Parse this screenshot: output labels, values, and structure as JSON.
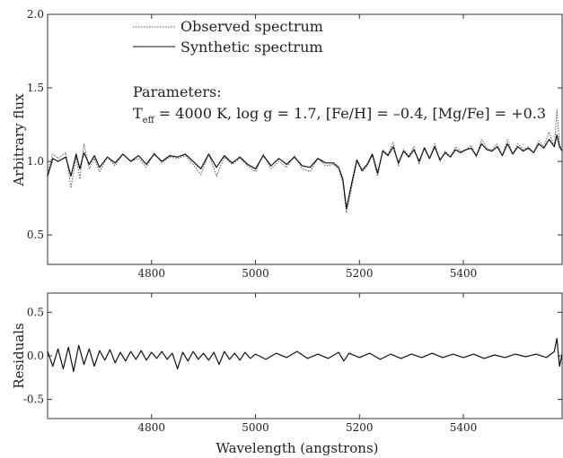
{
  "chart_data": [
    {
      "type": "line",
      "panel": "spectrum",
      "xlabel": "",
      "ylabel": "Arbitrary flux",
      "xlim": [
        4600,
        5590
      ],
      "ylim": [
        0.3,
        2.0
      ],
      "xticks": [
        4800,
        5000,
        5200,
        5400
      ],
      "xtick_labels": [
        "4800",
        "5000",
        "5200",
        "5400"
      ],
      "yticks": [
        0.5,
        1.0,
        1.5,
        2.0
      ],
      "ytick_labels": [
        "0.5",
        "1.0",
        "1.5",
        "2.0"
      ],
      "legend_placement": "top-left",
      "annotation": {
        "title": "Parameters:",
        "teff_symbol": "T",
        "teff_sub": "eff",
        "teff_rest": " = 4000 K, log g = 1.7, [Fe/H] = –0.4, [Mg/Fe] = +0.3"
      },
      "series": [
        {
          "name": "Observed spectrum",
          "style": "dotted",
          "color": "#555555",
          "x": [
            4600,
            4610,
            4620,
            4635,
            4645,
            4655,
            4662,
            4670,
            4680,
            4690,
            4700,
            4715,
            4730,
            4745,
            4760,
            4775,
            4790,
            4805,
            4820,
            4835,
            4850,
            4865,
            4880,
            4895,
            4910,
            4925,
            4940,
            4955,
            4970,
            4985,
            5000,
            5015,
            5030,
            5045,
            5060,
            5075,
            5090,
            5105,
            5120,
            5135,
            5150,
            5160,
            5168,
            5175,
            5185,
            5195,
            5205,
            5215,
            5225,
            5235,
            5245,
            5255,
            5265,
            5275,
            5285,
            5295,
            5305,
            5315,
            5325,
            5335,
            5345,
            5355,
            5365,
            5375,
            5385,
            5395,
            5405,
            5415,
            5425,
            5435,
            5445,
            5455,
            5465,
            5475,
            5485,
            5495,
            5505,
            5515,
            5525,
            5535,
            5545,
            5555,
            5565,
            5575,
            5580,
            5585,
            5590
          ],
          "y": [
            0.92,
            1.05,
            1.02,
            1.06,
            0.82,
            1.03,
            0.88,
            1.12,
            0.95,
            1.02,
            0.93,
            1.03,
            0.97,
            1.05,
            1.0,
            1.02,
            0.96,
            1.06,
            0.99,
            1.03,
            1.02,
            1.04,
            0.98,
            0.91,
            1.05,
            0.9,
            1.03,
            0.98,
            1.02,
            0.97,
            0.93,
            1.05,
            0.95,
            1.0,
            0.96,
            1.04,
            0.95,
            0.93,
            1.02,
            0.97,
            0.98,
            0.95,
            0.86,
            0.65,
            0.82,
            1.0,
            0.93,
            0.97,
            1.04,
            0.9,
            1.08,
            1.05,
            1.13,
            0.97,
            1.08,
            1.04,
            1.1,
            0.98,
            1.1,
            1.02,
            1.12,
            1.0,
            1.07,
            1.03,
            1.1,
            1.07,
            1.08,
            1.11,
            1.03,
            1.15,
            1.09,
            1.08,
            1.12,
            1.04,
            1.15,
            1.05,
            1.12,
            1.08,
            1.1,
            1.06,
            1.14,
            1.1,
            1.2,
            1.1,
            1.35,
            1.12,
            1.08
          ]
        },
        {
          "name": "Synthetic spectrum",
          "style": "solid",
          "color": "#111111",
          "x": [
            4600,
            4610,
            4620,
            4635,
            4645,
            4655,
            4662,
            4670,
            4680,
            4690,
            4700,
            4715,
            4730,
            4745,
            4760,
            4775,
            4790,
            4805,
            4820,
            4835,
            4850,
            4865,
            4880,
            4895,
            4910,
            4925,
            4940,
            4955,
            4970,
            4985,
            5000,
            5015,
            5030,
            5045,
            5060,
            5075,
            5090,
            5105,
            5120,
            5135,
            5150,
            5160,
            5168,
            5175,
            5185,
            5195,
            5205,
            5215,
            5225,
            5235,
            5245,
            5255,
            5265,
            5275,
            5285,
            5295,
            5305,
            5315,
            5325,
            5335,
            5345,
            5355,
            5365,
            5375,
            5385,
            5395,
            5405,
            5415,
            5425,
            5435,
            5445,
            5455,
            5465,
            5475,
            5485,
            5495,
            5505,
            5515,
            5525,
            5535,
            5545,
            5555,
            5565,
            5575,
            5580,
            5585,
            5590
          ],
          "y": [
            0.9,
            1.02,
            1.0,
            1.03,
            0.9,
            1.05,
            0.95,
            1.06,
            0.98,
            1.04,
            0.96,
            1.03,
            0.99,
            1.05,
            1.0,
            1.04,
            0.98,
            1.05,
            1.0,
            1.04,
            1.03,
            1.05,
            1.0,
            0.95,
            1.05,
            0.96,
            1.04,
            0.99,
            1.03,
            0.98,
            0.95,
            1.04,
            0.97,
            1.02,
            0.98,
            1.03,
            0.97,
            0.96,
            1.02,
            0.99,
            0.99,
            0.96,
            0.88,
            0.68,
            0.85,
            1.01,
            0.94,
            0.98,
            1.05,
            0.92,
            1.07,
            1.04,
            1.1,
            0.99,
            1.07,
            1.03,
            1.08,
            1.0,
            1.09,
            1.02,
            1.1,
            1.01,
            1.06,
            1.03,
            1.08,
            1.06,
            1.08,
            1.09,
            1.04,
            1.12,
            1.08,
            1.07,
            1.1,
            1.04,
            1.12,
            1.05,
            1.1,
            1.07,
            1.09,
            1.06,
            1.12,
            1.09,
            1.15,
            1.1,
            1.18,
            1.1,
            1.07
          ]
        }
      ]
    },
    {
      "type": "line",
      "panel": "residuals",
      "xlabel": "Wavelength (angstrons)",
      "ylabel": "Residuals",
      "xlim": [
        4600,
        5590
      ],
      "ylim": [
        -0.72,
        0.72
      ],
      "xticks": [
        4800,
        5000,
        5200,
        5400
      ],
      "xtick_labels": [
        "4800",
        "5000",
        "5200",
        "5400"
      ],
      "yticks": [
        -0.5,
        0.0,
        0.5
      ],
      "ytick_labels": [
        "-0.5",
        "0.0",
        "0.5"
      ],
      "series": [
        {
          "name": "",
          "style": "solid",
          "color": "#111111",
          "x": [
            4600,
            4610,
            4620,
            4630,
            4640,
            4650,
            4660,
            4670,
            4680,
            4690,
            4700,
            4710,
            4720,
            4730,
            4740,
            4750,
            4760,
            4770,
            4780,
            4790,
            4800,
            4810,
            4820,
            4830,
            4840,
            4850,
            4860,
            4870,
            4880,
            4890,
            4900,
            4910,
            4920,
            4930,
            4940,
            4950,
            4960,
            4970,
            4980,
            4990,
            5000,
            5020,
            5040,
            5060,
            5080,
            5100,
            5120,
            5140,
            5160,
            5170,
            5180,
            5200,
            5220,
            5240,
            5260,
            5280,
            5300,
            5320,
            5340,
            5360,
            5380,
            5400,
            5420,
            5440,
            5460,
            5480,
            5500,
            5520,
            5540,
            5560,
            5575,
            5580,
            5585,
            5590
          ],
          "y": [
            0.05,
            -0.12,
            0.08,
            -0.15,
            0.1,
            -0.18,
            0.12,
            -0.1,
            0.08,
            -0.12,
            0.06,
            -0.05,
            0.07,
            -0.08,
            0.04,
            -0.06,
            0.05,
            -0.04,
            0.06,
            -0.05,
            0.04,
            -0.03,
            0.05,
            -0.04,
            0.03,
            -0.15,
            0.04,
            -0.06,
            0.05,
            -0.04,
            0.03,
            -0.05,
            0.04,
            -0.1,
            0.05,
            -0.04,
            0.03,
            -0.05,
            0.04,
            -0.03,
            0.02,
            -0.04,
            0.03,
            -0.02,
            0.05,
            -0.03,
            0.02,
            -0.03,
            0.04,
            -0.06,
            0.03,
            -0.02,
            0.03,
            -0.04,
            0.02,
            -0.03,
            0.02,
            -0.02,
            0.03,
            -0.02,
            0.02,
            -0.02,
            0.02,
            -0.03,
            0.01,
            -0.02,
            0.02,
            -0.01,
            0.02,
            -0.02,
            0.05,
            0.2,
            -0.12,
            0.02
          ]
        }
      ]
    }
  ]
}
